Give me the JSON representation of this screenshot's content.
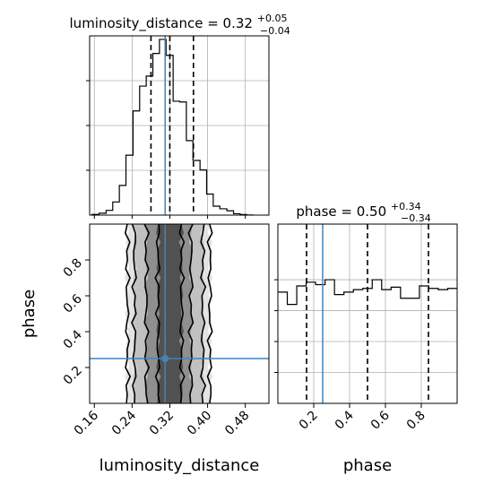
{
  "chart_data": [
    {
      "type": "histogram",
      "panel": "top-left",
      "title_main": "luminosity_distance = 0.32",
      "title_sup": "+0.05",
      "title_sub": "−0.04",
      "xlim": [
        0.15,
        0.53
      ],
      "grid": true,
      "bin_edges": [
        0.155,
        0.17,
        0.185,
        0.199,
        0.213,
        0.227,
        0.242,
        0.256,
        0.27,
        0.284,
        0.298,
        0.312,
        0.327,
        0.341,
        0.355,
        0.369,
        0.384,
        0.398,
        0.412,
        0.426,
        0.441,
        0.455,
        0.469,
        0.483,
        0.497
      ],
      "counts": [
        0.4,
        1.1,
        2.7,
        7.5,
        16.9,
        34.1,
        59.3,
        73.4,
        79.1,
        92.0,
        100.0,
        90.9,
        64.8,
        64.4,
        42.4,
        31.1,
        25.7,
        12.0,
        5.1,
        3.6,
        2.5,
        0.8,
        0.3,
        0.1
      ],
      "quantiles": [
        0.28,
        0.32,
        0.37
      ],
      "truth": 0.31,
      "truth_color": "#4682b4"
    },
    {
      "type": "heatmap",
      "panel": "bottom-left",
      "kind": "2d-density-contour",
      "xlabel": "luminosity_distance",
      "ylabel": "phase",
      "xlim": [
        0.15,
        0.53
      ],
      "ylim": [
        0.0,
        1.0
      ],
      "xticks": [
        "0.16",
        "0.24",
        "0.32",
        "0.40",
        "0.48"
      ],
      "xtick_values": [
        0.16,
        0.24,
        0.32,
        0.4,
        0.48
      ],
      "yticks": [
        "0.2",
        "0.4",
        "0.6",
        "0.8"
      ],
      "ytick_values": [
        0.2,
        0.4,
        0.6,
        0.8
      ],
      "contour_levels": [
        {
          "name": "0.5 sigma",
          "x_range": [
            0.295,
            0.345
          ]
        },
        {
          "name": "1 sigma",
          "x_range": [
            0.27,
            0.365
          ]
        },
        {
          "name": "1.5 sigma",
          "x_range": [
            0.245,
            0.39
          ]
        },
        {
          "name": "2 sigma",
          "x_range": [
            0.23,
            0.405
          ]
        }
      ],
      "truth": {
        "x": 0.31,
        "y": 0.25
      },
      "truth_color": "#4682b4"
    },
    {
      "type": "histogram",
      "panel": "bottom-right",
      "title_main": "phase = 0.50",
      "title_sup": "+0.34",
      "title_sub": "−0.34",
      "xlabel": "phase",
      "xlim": [
        0.0,
        1.0
      ],
      "grid": true,
      "xticks": [
        "0.2",
        "0.4",
        "0.6",
        "0.8"
      ],
      "xtick_values": [
        0.2,
        0.4,
        0.6,
        0.8
      ],
      "bin_edges": [
        0.0,
        0.0526,
        0.1053,
        0.1579,
        0.2105,
        0.2632,
        0.3158,
        0.3684,
        0.4211,
        0.4737,
        0.5263,
        0.5789,
        0.6316,
        0.6842,
        0.7368,
        0.7895,
        0.8421,
        0.8947,
        0.9474,
        1.0
      ],
      "counts": [
        90,
        80,
        95,
        98,
        96,
        100,
        88,
        90,
        92,
        93,
        100,
        92,
        94,
        85,
        85,
        95,
        93,
        92,
        93
      ],
      "quantiles": [
        0.16,
        0.5,
        0.84
      ],
      "truth": 0.25,
      "truth_color": "#4682b4"
    }
  ]
}
